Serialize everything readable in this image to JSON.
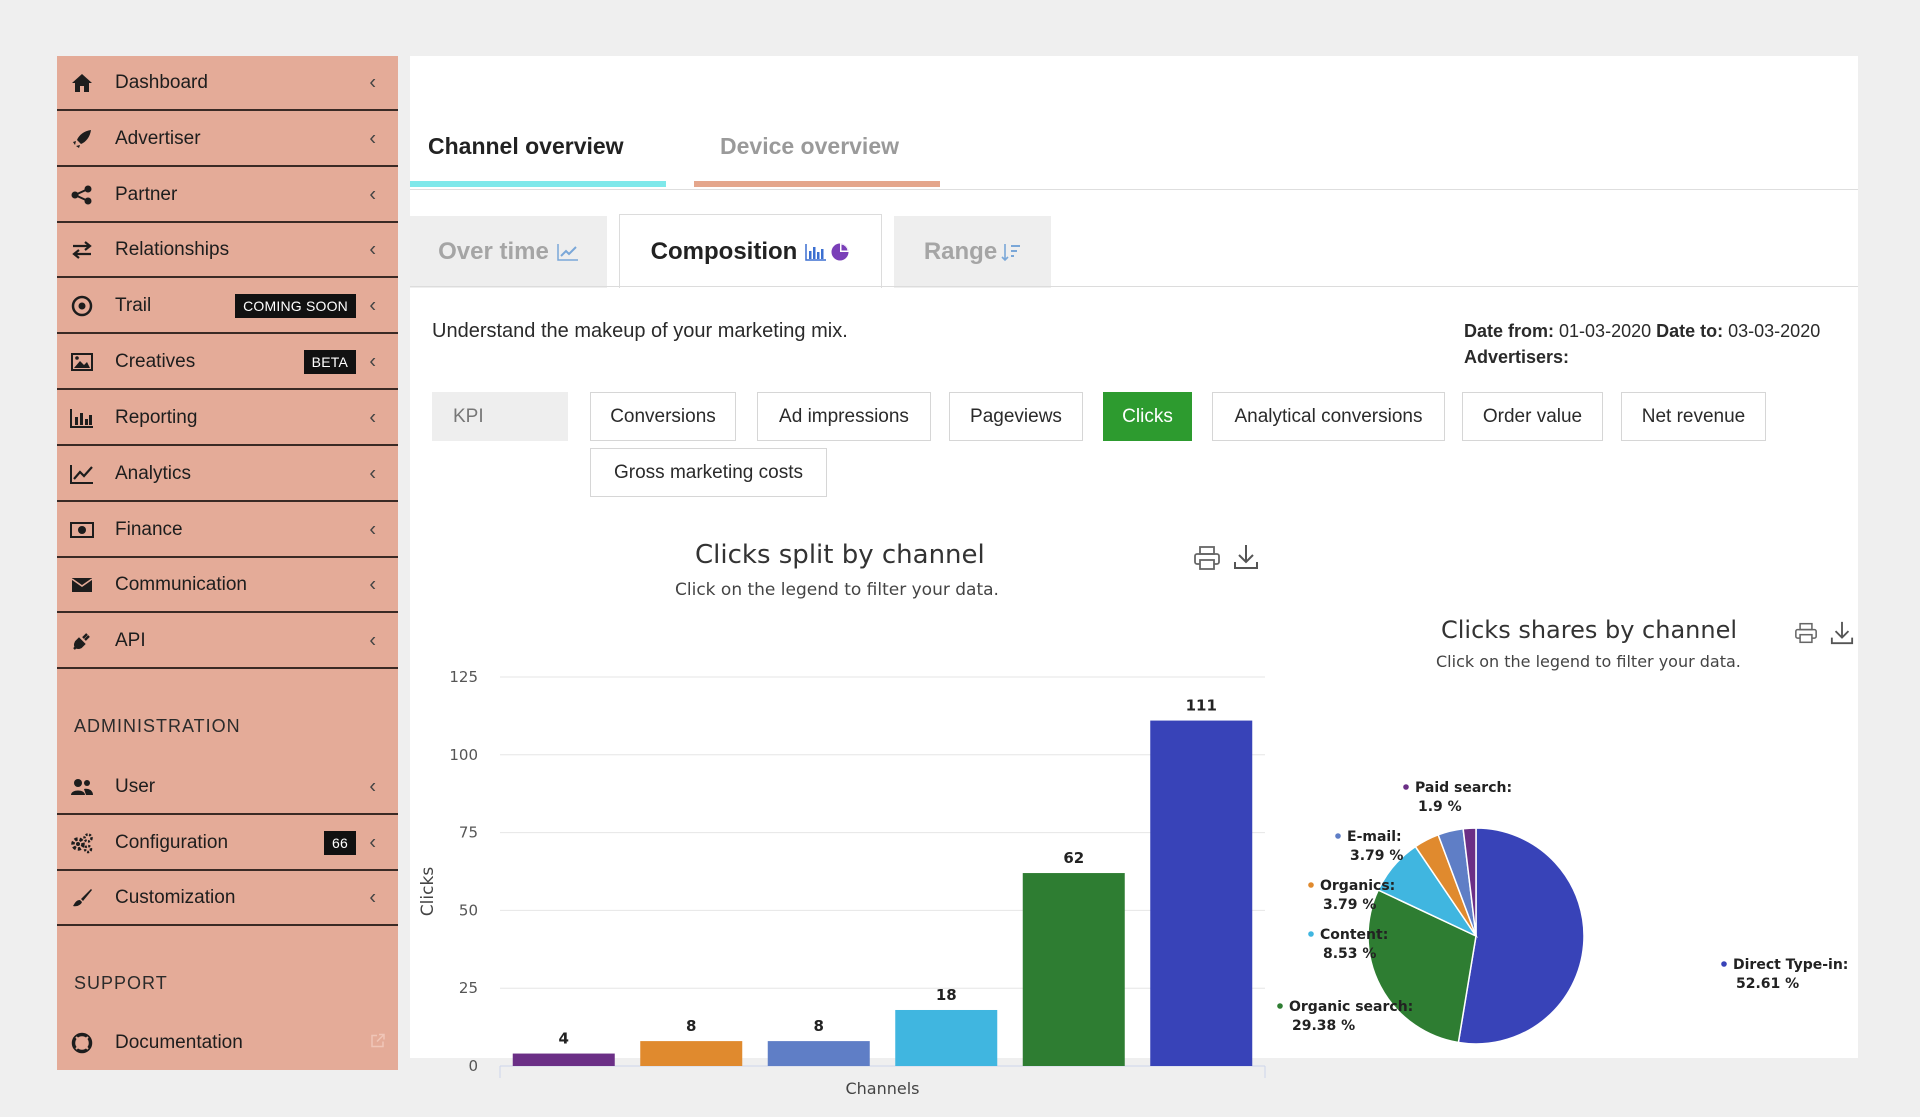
{
  "sidebar": {
    "items": [
      {
        "label": "Dashboard",
        "icon": "home-icon"
      },
      {
        "label": "Advertiser",
        "icon": "rocket-icon"
      },
      {
        "label": "Partner",
        "icon": "share-icon"
      },
      {
        "label": "Relationships",
        "icon": "exchange-icon"
      },
      {
        "label": "Trail",
        "icon": "target-icon",
        "badge": "COMING SOON"
      },
      {
        "label": "Creatives",
        "icon": "image-icon",
        "badge": "BETA"
      },
      {
        "label": "Reporting",
        "icon": "bar-chart-icon"
      },
      {
        "label": "Analytics",
        "icon": "line-chart-icon"
      },
      {
        "label": "Finance",
        "icon": "money-icon"
      },
      {
        "label": "Communication",
        "icon": "envelope-icon"
      },
      {
        "label": "API",
        "icon": "plug-icon"
      }
    ],
    "admin_title": "ADMINISTRATION",
    "admin_items": [
      {
        "label": "User",
        "icon": "users-icon"
      },
      {
        "label": "Configuration",
        "icon": "cogs-icon",
        "badge": "66"
      },
      {
        "label": "Customization",
        "icon": "brush-icon"
      }
    ],
    "support_title": "SUPPORT",
    "support_items": [
      {
        "label": "Documentation",
        "icon": "lifebuoy-icon"
      }
    ]
  },
  "tabs": {
    "main": [
      "Channel overview",
      "Device overview"
    ],
    "sub": [
      "Over time",
      "Composition",
      "Range"
    ]
  },
  "description": "Understand the makeup of your marketing mix.",
  "meta": {
    "date_from_label": "Date from:",
    "date_from": "01-03-2020",
    "date_to_label": "Date to:",
    "date_to": "03-03-2020",
    "advertisers_label": "Advertisers:"
  },
  "kpi": {
    "label": "KPI",
    "options": [
      "Conversions",
      "Ad impressions",
      "Pageviews",
      "Clicks",
      "Analytical conversions",
      "Order value",
      "Net revenue",
      "Gross marketing costs"
    ],
    "selected": "Clicks"
  },
  "colors": {
    "sidebar_bg": "#e4ab98",
    "selected_kpi": "#2d9b2f",
    "active_tab_underline": "#7fe8ea",
    "inactive_tab_underline": "#e4a68c"
  },
  "chart_data": [
    {
      "type": "bar",
      "title": "Clicks split by channel",
      "subtitle": "Click on the legend to filter your data.",
      "xlabel": "Channels",
      "ylabel": "Clicks",
      "ylim": [
        0,
        125
      ],
      "yticks": [
        0,
        25,
        50,
        75,
        100,
        125
      ],
      "values": [
        4,
        8,
        8,
        18,
        62,
        111
      ],
      "colors": [
        "#6b2f86",
        "#e08a2e",
        "#5f7ec6",
        "#40b6e0",
        "#2e7d32",
        "#3843b8"
      ],
      "grid": true
    },
    {
      "type": "pie",
      "title": "Clicks shares by channel",
      "subtitle": "Click on the legend to filter your data.",
      "slices": [
        {
          "name": "Direct Type-in:",
          "value": 52.61,
          "pct_label": "52.61 %",
          "color": "#3843b8"
        },
        {
          "name": "Organic search:",
          "value": 29.38,
          "pct_label": "29.38 %",
          "color": "#2e7d32"
        },
        {
          "name": "Content:",
          "value": 8.53,
          "pct_label": "8.53 %",
          "color": "#40b6e0"
        },
        {
          "name": "Organics:",
          "value": 3.79,
          "pct_label": "3.79 %",
          "color": "#e08a2e"
        },
        {
          "name": "E-mail:",
          "value": 3.79,
          "pct_label": "3.79 %",
          "color": "#5f7ec6"
        },
        {
          "name": "Paid search:",
          "value": 1.9,
          "pct_label": "1.9 %",
          "color": "#6b2f86"
        }
      ]
    }
  ]
}
